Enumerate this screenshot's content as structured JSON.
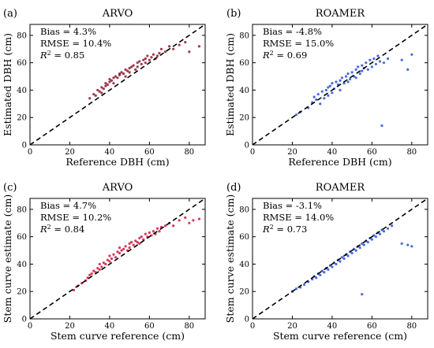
{
  "chart_data": [
    {
      "panel": "(a)",
      "title": "ARVO",
      "type": "scatter",
      "xlabel": "Reference DBH (cm)",
      "ylabel": "Estimated DBH (cm)",
      "xlim": [
        0,
        88
      ],
      "ylim": [
        0,
        88
      ],
      "xticks": [
        0,
        20,
        40,
        60,
        80
      ],
      "yticks": [
        0,
        20,
        40,
        60,
        80
      ],
      "reference_line": "y = x",
      "stats": {
        "bias": "Bias = 4.3%",
        "rmse": "RMSE = 10.4%",
        "r2_label": "R",
        "r2_value": " = 0.85"
      },
      "color": "#8b1a2e",
      "series": [
        {
          "x": [
            30,
            32,
            33,
            34,
            35,
            36,
            36,
            37,
            38,
            38,
            39,
            40,
            40,
            41,
            42,
            42,
            43,
            44,
            45,
            45,
            46,
            47,
            48,
            48,
            49,
            50,
            50,
            51,
            52,
            53,
            54,
            54,
            55,
            56,
            57,
            58,
            58,
            59,
            60,
            61,
            62,
            63,
            64,
            65,
            66,
            68,
            70,
            72,
            75,
            78,
            80,
            85
          ],
          "y": [
            34,
            37,
            36,
            40,
            39,
            38,
            42,
            41,
            43,
            45,
            44,
            46,
            48,
            47,
            49,
            45,
            50,
            49,
            52,
            51,
            53,
            52,
            55,
            50,
            54,
            56,
            53,
            57,
            58,
            55,
            60,
            57,
            61,
            59,
            62,
            60,
            63,
            65,
            62,
            64,
            66,
            63,
            65,
            67,
            70,
            68,
            72,
            70,
            73,
            75,
            68,
            72
          ]
        }
      ]
    },
    {
      "panel": "(b)",
      "title": "ROAMER",
      "type": "scatter",
      "xlabel": "Reference DBH (cm)",
      "ylabel": "Estimated DBH (cm)",
      "xlim": [
        0,
        88
      ],
      "ylim": [
        0,
        88
      ],
      "xticks": [
        0,
        20,
        40,
        60,
        80
      ],
      "yticks": [
        0,
        20,
        40,
        60,
        80
      ],
      "reference_line": "y = x",
      "stats": {
        "bias": "Bias = -4.8%",
        "rmse": "RMSE = 15.0%",
        "r2_label": "R",
        "r2_value": " = 0.69"
      },
      "color": "#2a52d4",
      "series": [
        {
          "x": [
            22,
            24,
            28,
            30,
            31,
            32,
            33,
            34,
            35,
            36,
            37,
            38,
            38,
            39,
            40,
            40,
            41,
            42,
            43,
            44,
            44,
            45,
            46,
            47,
            48,
            48,
            49,
            50,
            51,
            52,
            52,
            53,
            54,
            55,
            55,
            56,
            57,
            58,
            59,
            60,
            61,
            62,
            63,
            64,
            65,
            66,
            68,
            75,
            78,
            80
          ],
          "y": [
            22,
            24,
            27,
            31,
            35,
            33,
            37,
            30,
            39,
            34,
            40,
            42,
            36,
            43,
            38,
            45,
            41,
            46,
            44,
            47,
            40,
            49,
            45,
            50,
            52,
            46,
            48,
            53,
            50,
            55,
            49,
            57,
            52,
            54,
            58,
            56,
            60,
            55,
            62,
            57,
            63,
            59,
            65,
            61,
            14,
            60,
            63,
            62,
            55,
            66
          ]
        }
      ]
    },
    {
      "panel": "(c)",
      "title": "ARVO",
      "type": "scatter",
      "xlabel": "Stem curve reference (cm)",
      "ylabel": "Stem curve estimate (cm)",
      "xlim": [
        0,
        88
      ],
      "ylim": [
        0,
        88
      ],
      "xticks": [
        0,
        20,
        40,
        60,
        80
      ],
      "yticks": [
        0,
        20,
        40,
        60,
        80
      ],
      "reference_line": "y = x",
      "stats": {
        "bias": "Bias = 4.7%",
        "rmse": "RMSE = 10.2%",
        "r2_label": "R",
        "r2_value": " = 0.84"
      },
      "color": "#d4143c",
      "series": [
        {
          "x": [
            22,
            24,
            26,
            28,
            29,
            30,
            31,
            32,
            33,
            34,
            35,
            35,
            36,
            37,
            38,
            39,
            40,
            40,
            41,
            42,
            43,
            44,
            45,
            45,
            46,
            47,
            48,
            49,
            50,
            50,
            51,
            52,
            53,
            54,
            55,
            55,
            56,
            57,
            58,
            59,
            60,
            61,
            62,
            63,
            64,
            65,
            66,
            68,
            70,
            72,
            75,
            78,
            80,
            82,
            85
          ],
          "y": [
            21,
            24,
            26,
            28,
            30,
            32,
            33,
            35,
            34,
            37,
            36,
            40,
            38,
            41,
            40,
            43,
            42,
            46,
            44,
            47,
            45,
            49,
            48,
            52,
            50,
            51,
            53,
            50,
            55,
            52,
            56,
            54,
            57,
            56,
            59,
            55,
            60,
            58,
            62,
            60,
            63,
            61,
            64,
            62,
            66,
            64,
            67,
            68,
            70,
            68,
            72,
            74,
            70,
            72,
            73
          ]
        }
      ]
    },
    {
      "panel": "(d)",
      "title": "ROAMER",
      "type": "scatter",
      "xlabel": "Stem curve reference (cm)",
      "ylabel": "Stem curve estimate (cm)",
      "xlim": [
        0,
        88
      ],
      "ylim": [
        0,
        88
      ],
      "xticks": [
        0,
        20,
        40,
        60,
        80
      ],
      "yticks": [
        0,
        20,
        40,
        60,
        80
      ],
      "reference_line": "y = x",
      "stats": {
        "bias": "Bias = -3.1%",
        "rmse": "RMSE = 14.0%",
        "r2_label": "R",
        "r2_value": " = 0.73"
      },
      "color": "#2a52d4",
      "series": [
        {
          "x": [
            20,
            22,
            24,
            26,
            28,
            30,
            31,
            32,
            33,
            34,
            35,
            36,
            37,
            38,
            39,
            40,
            41,
            42,
            43,
            44,
            45,
            46,
            47,
            48,
            49,
            50,
            51,
            52,
            53,
            54,
            55,
            55,
            56,
            57,
            58,
            59,
            60,
            61,
            62,
            63,
            64,
            65,
            66,
            68,
            70,
            75,
            78,
            80
          ],
          "y": [
            20,
            22,
            23,
            25,
            27,
            29,
            31,
            30,
            33,
            32,
            35,
            34,
            37,
            36,
            39,
            38,
            41,
            40,
            43,
            42,
            45,
            44,
            47,
            46,
            49,
            48,
            51,
            50,
            53,
            52,
            18,
            55,
            54,
            57,
            56,
            59,
            58,
            61,
            60,
            63,
            62,
            65,
            64,
            66,
            68,
            55,
            54,
            53
          ]
        }
      ]
    }
  ]
}
